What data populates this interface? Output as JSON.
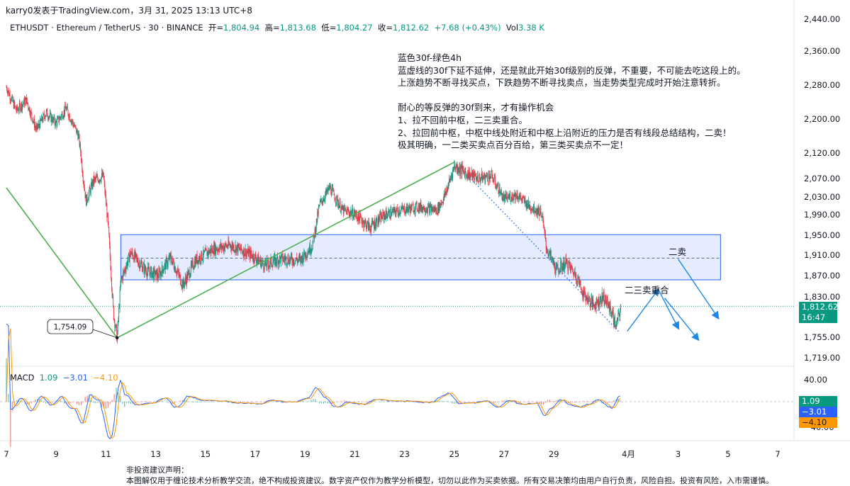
{
  "header": {
    "line": "karry0发表于TradingView.com，3月 31, 2025 13:13 UTC+8"
  },
  "symbol": {
    "name": "ETHUSDT · Ethereum / TetherUS · 30 · BINANCE",
    "open_label": "开=",
    "open": "1,804.94",
    "high_label": "高=",
    "high": "1,813.68",
    "low_label": "低=",
    "low": "1,804.27",
    "close_label": "收=",
    "close": "1,812.62",
    "change": "+7.68 (+0.43%)",
    "vol_label": "Vol",
    "vol": "3.38 K"
  },
  "annotation_lines": [
    "蓝色30f-绿色4h",
    "蓝虚线的30f下延不延伸，还是就此开始30f级别的反弹，不重要，不可能去吃这段上的。",
    "上涨趋势不断寻找买点，下跌趋势不断寻找卖点，当走势类型完成时开始注意转折。",
    "",
    "耐心的等反弹的30f到来，才有操作机会",
    "1、拉不回前中枢，二三卖重合。",
    "2、拉回前中枢，中枢中线处附近和中枢上沿附近的压力是否有线段总结结构，二卖！",
    "极其明确，一二类买卖点百分百给，第三类买卖点不一定！"
  ],
  "labels": {
    "er_mai": "二卖",
    "er_san": "二三卖重合",
    "low_price": "1,754.09"
  },
  "price_badge": {
    "price": "1,812.62",
    "countdown": "16:47"
  },
  "macd": {
    "title": "MACD",
    "macd": "1.09",
    "signal": "−3.01",
    "hist": "−4.10",
    "badge_macd": "1.09",
    "badge_signal": "−3.01",
    "badge_hist": "−4.10"
  },
  "disclaimer": {
    "title": "非投资建议声明：",
    "text": "本图解仅用于缠论技术分析教学交流，绝不构成投资建议。数字资产仅作为教学分析模型，切勿以此作为买卖依据。所有交易决策均由用户自行负责，风险自担。投资有风险，入市需谨慎。"
  },
  "colors": {
    "up": "#089981",
    "down": "#f23645",
    "zone": "#2962ff",
    "green_line": "#4caf50",
    "arrow": "#1e88e5",
    "macd_line": "#2962ff",
    "signal_line": "#ff9800"
  },
  "chart_data": {
    "type": "candlestick",
    "price_axis": {
      "ticks": [
        2440,
        2360,
        2280,
        2200,
        2120,
        2070,
        2030,
        1990,
        1950,
        1910,
        1870,
        1830,
        1755,
        1719
      ],
      "tick_labels": [
        "2,440.00",
        "2,360.00",
        "2,280.00",
        "2,200.00",
        "2,120.00",
        "2,070.00",
        "2,030.00",
        "1,990.00",
        "1,950.00",
        "1,910.00",
        "1,870.00",
        "1,830.00",
        "1,755.00",
        "1,719.00"
      ]
    },
    "x_axis": {
      "ticks": [
        "7",
        "9",
        "11",
        "13",
        "15",
        "17",
        "19",
        "21",
        "23",
        "25",
        "27",
        "29",
        "4月",
        "3",
        "5",
        "7"
      ],
      "day": [
        7,
        9,
        11,
        13,
        15,
        17,
        19,
        21,
        23,
        25,
        27,
        29,
        32,
        34,
        36,
        38
      ]
    },
    "price_path": [
      [
        7.0,
        2275
      ],
      [
        7.4,
        2220
      ],
      [
        7.8,
        2245
      ],
      [
        8.2,
        2175
      ],
      [
        8.6,
        2215
      ],
      [
        9.0,
        2190
      ],
      [
        9.4,
        2225
      ],
      [
        9.9,
        2160
      ],
      [
        10.2,
        2020
      ],
      [
        10.5,
        2065
      ],
      [
        10.9,
        2075
      ],
      [
        11.1,
        1960
      ],
      [
        11.3,
        1800
      ],
      [
        11.45,
        1754
      ],
      [
        11.6,
        1860
      ],
      [
        12.0,
        1915
      ],
      [
        12.6,
        1880
      ],
      [
        13.1,
        1870
      ],
      [
        13.6,
        1905
      ],
      [
        14.1,
        1852
      ],
      [
        14.6,
        1900
      ],
      [
        15.3,
        1922
      ],
      [
        16.0,
        1930
      ],
      [
        16.8,
        1912
      ],
      [
        17.4,
        1890
      ],
      [
        18.0,
        1903
      ],
      [
        18.8,
        1900
      ],
      [
        19.3,
        1930
      ],
      [
        19.6,
        2015
      ],
      [
        20.0,
        2050
      ],
      [
        20.5,
        2000
      ],
      [
        21.0,
        1992
      ],
      [
        21.6,
        1965
      ],
      [
        22.2,
        1990
      ],
      [
        22.8,
        2000
      ],
      [
        23.6,
        2008
      ],
      [
        24.3,
        2000
      ],
      [
        24.6,
        2030
      ],
      [
        25.0,
        2095
      ],
      [
        25.5,
        2080
      ],
      [
        26.0,
        2070
      ],
      [
        26.5,
        2075
      ],
      [
        27.0,
        2025
      ],
      [
        27.5,
        2035
      ],
      [
        28.0,
        2010
      ],
      [
        28.5,
        1995
      ],
      [
        28.7,
        1925
      ],
      [
        29.1,
        1880
      ],
      [
        29.5,
        1895
      ],
      [
        29.9,
        1870
      ],
      [
        30.2,
        1835
      ],
      [
        30.6,
        1815
      ],
      [
        31.0,
        1830
      ],
      [
        31.3,
        1805
      ],
      [
        31.5,
        1775
      ],
      [
        31.7,
        1810
      ]
    ],
    "zone": {
      "day_start": 11.6,
      "day_end": 35.7,
      "price_low": 1862,
      "price_high": 1951,
      "mid": 1904
    },
    "green_line": [
      [
        7.0,
        2050
      ],
      [
        11.45,
        1754
      ],
      [
        25.0,
        2102
      ]
    ],
    "blue_dotted": [
      [
        25.6,
        2073
      ],
      [
        31.6,
        1766
      ]
    ],
    "arrows": [
      [
        [
          31.95,
          1766
        ],
        [
          33.2,
          1844
        ]
      ],
      [
        [
          33.2,
          1844
        ],
        [
          34.0,
          1772
        ]
      ],
      [
        [
          34.0,
          1902
        ],
        [
          35.6,
          1791
        ]
      ],
      [
        [
          33.45,
          1828
        ],
        [
          34.8,
          1751
        ]
      ]
    ],
    "current_price": 1812.62,
    "macd_axis": {
      "ticks": [
        40,
        -40
      ],
      "tick_labels": [
        "40.00",
        "−40.00"
      ]
    }
  }
}
